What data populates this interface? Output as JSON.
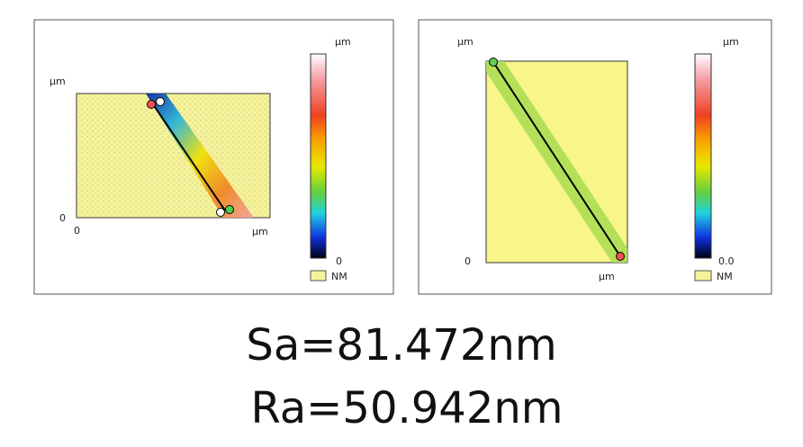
{
  "left_panel": {
    "colorbar_unit": "µm",
    "y_unit": "µm",
    "y_origin": "0",
    "x_origin": "0",
    "x_unit": "µm",
    "colorbar_min": "0",
    "legend": "NM"
  },
  "right_panel": {
    "y_unit": "µm",
    "colorbar_unit": "µm",
    "y_origin": "0",
    "x_unit": "µm",
    "colorbar_min": "0.0",
    "legend": "NM"
  },
  "results": [
    "Sa=81.472nm",
    "Ra=50.942nm"
  ]
}
